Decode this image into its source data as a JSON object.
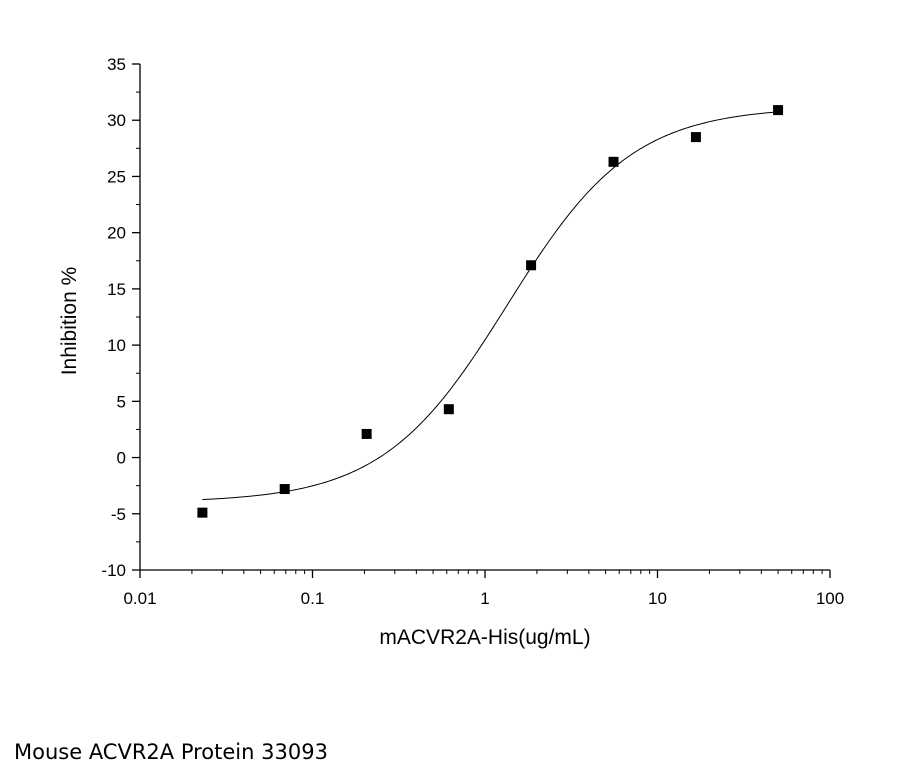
{
  "caption": "Mouse ACVR2A Protein 33093",
  "chart_data": {
    "type": "scatter",
    "xlabel": "mACVR2A-His(ug/mL)",
    "ylabel": "Inhibition %",
    "xscale": "log",
    "xlim": [
      0.01,
      100
    ],
    "ylim": [
      -10,
      35
    ],
    "x_tick_labels": [
      "0.01",
      "0.1",
      "1",
      "10",
      "100"
    ],
    "y_tick_labels": [
      "-10",
      "-5",
      "0",
      "5",
      "10",
      "15",
      "20",
      "25",
      "30",
      "35"
    ],
    "grid": false,
    "legend": "none",
    "marker_color": "#000000",
    "series": [
      {
        "x": [
          0.023,
          0.069,
          0.206,
          0.617,
          1.85,
          5.56,
          16.7,
          50
        ],
        "y": [
          -4.9,
          -2.8,
          2.1,
          4.3,
          17.1,
          26.3,
          28.5,
          30.9
        ]
      }
    ],
    "fit": {
      "type": "sigmoid",
      "x_range": [
        0.023,
        50
      ],
      "bottom": -4.0,
      "top": 31.2,
      "ec50": 1.35,
      "hill": 1.2
    }
  }
}
